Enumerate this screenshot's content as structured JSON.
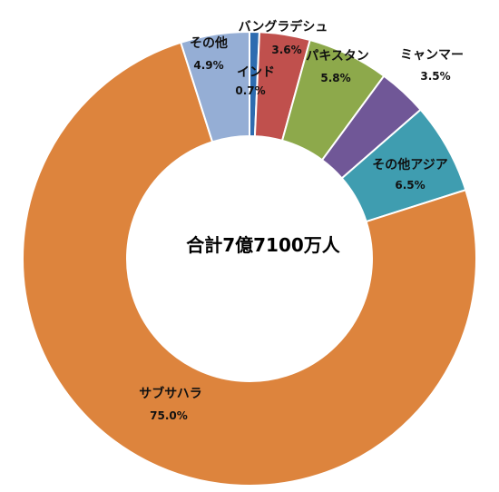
{
  "chart_data": {
    "type": "pie",
    "donut": true,
    "center_label": "合計7億7100万人",
    "slices": [
      {
        "name": "インド",
        "label": "0.7%",
        "value": 0.7,
        "color": "#2E6CB0"
      },
      {
        "name": "バングラデシュ",
        "label": "3.6%",
        "value": 3.6,
        "color": "#C0504D"
      },
      {
        "name": "パキスタン",
        "label": "5.8%",
        "value": 5.8,
        "color": "#8DA94B"
      },
      {
        "name": "ミャンマー",
        "label": "3.5%",
        "value": 3.5,
        "color": "#705797"
      },
      {
        "name": "その他アジア",
        "label": "6.5%",
        "value": 6.5,
        "color": "#3F9DB0"
      },
      {
        "name": "サブサハラ",
        "label": "75.0%",
        "value": 75.0,
        "color": "#DD843D"
      },
      {
        "name": "その他",
        "label": "4.9%",
        "value": 4.9,
        "color": "#95AED5"
      }
    ]
  }
}
